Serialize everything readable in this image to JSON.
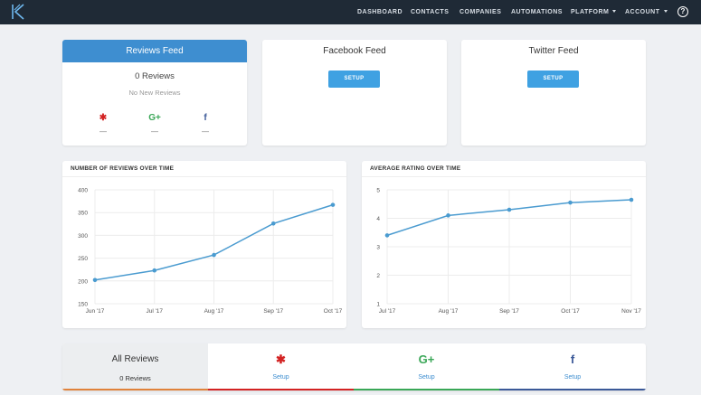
{
  "colors": {
    "topbar": "#1f2a36",
    "accent": "#3e8ed0",
    "button": "#3fa1e2",
    "chart_line": "#4a9bd0",
    "yelp": "#d32323",
    "google": "#3aa757",
    "facebook": "#3b5998",
    "all_reviews_bar": "#e0823b"
  },
  "nav": {
    "items": [
      {
        "label": "DASHBOARD"
      },
      {
        "label": "CONTACTS"
      },
      {
        "label": "COMPANIES"
      },
      {
        "label": "AUTOMATIONS"
      },
      {
        "label": "PLATFORM",
        "dropdown": true
      },
      {
        "label": "ACCOUNT",
        "dropdown": true
      }
    ],
    "help_icon": "?"
  },
  "feeds": {
    "reviews": {
      "title": "Reviews Feed",
      "count": "0 Reviews",
      "subtext": "No New Reviews",
      "sources": [
        {
          "icon": "yelp-icon",
          "glyph": "✱",
          "value": "—"
        },
        {
          "icon": "google-plus-icon",
          "glyph": "G+",
          "value": "—"
        },
        {
          "icon": "facebook-icon",
          "glyph": "f",
          "value": "—"
        }
      ]
    },
    "facebook": {
      "title": "Facebook Feed",
      "button": "SETUP"
    },
    "twitter": {
      "title": "Twitter Feed",
      "button": "SETUP"
    }
  },
  "chart_data": [
    {
      "type": "line",
      "title": "NUMBER OF REVIEWS OVER TIME",
      "categories": [
        "Jun '17",
        "Jul '17",
        "Aug '17",
        "Sep '17",
        "Oct '17"
      ],
      "values": [
        202,
        223,
        257,
        326,
        367
      ],
      "ylim": [
        150,
        400
      ],
      "yticks": [
        150,
        200,
        250,
        300,
        350,
        400
      ],
      "grid": true
    },
    {
      "type": "line",
      "title": "AVERAGE RATING OVER TIME",
      "categories": [
        "Jul '17",
        "Aug '17",
        "Sep '17",
        "Oct '17",
        "Nov '17"
      ],
      "values": [
        3.4,
        4.1,
        4.3,
        4.55,
        4.65
      ],
      "ylim": [
        1,
        5
      ],
      "yticks": [
        1,
        2,
        3,
        4,
        5
      ],
      "grid": true
    }
  ],
  "bottom_tabs": {
    "all": {
      "label": "All Reviews",
      "count": "0 Reviews"
    },
    "sources": [
      {
        "icon": "yelp-icon",
        "glyph": "✱",
        "label": "Setup"
      },
      {
        "icon": "google-plus-icon",
        "glyph": "G+",
        "label": "Setup"
      },
      {
        "icon": "facebook-icon",
        "glyph": "f",
        "label": "Setup"
      }
    ]
  }
}
